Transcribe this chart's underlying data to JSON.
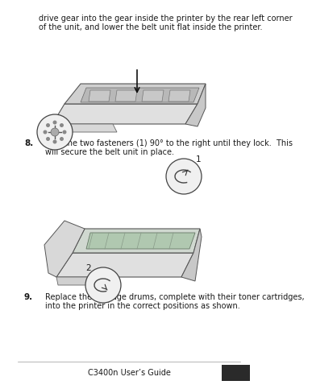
{
  "bg_color": "#ffffff",
  "text_color": "#1a1a1a",
  "top_text_line1": "drive gear into the gear inside the printer by the rear left corner",
  "top_text_line2": "of the unit, and lower the belt unit flat inside the printer.",
  "step8_num": "8.",
  "step8_line1": "Turn the two fasteners (1) 90° to the right until they lock.  This",
  "step8_line2": "will secure the belt unit in place.",
  "step9_num": "9.",
  "step9_line1": "Replace the 4 image drums, complete with their toner cartridges,",
  "step9_line2": "into the printer in the correct positions as shown.",
  "footer_text": "C3400n User’s Guide",
  "text_fontsize": 7.0,
  "num_fontsize": 7.5,
  "footer_fontsize": 7.0,
  "dark_sq_color": "#2a2a2a"
}
